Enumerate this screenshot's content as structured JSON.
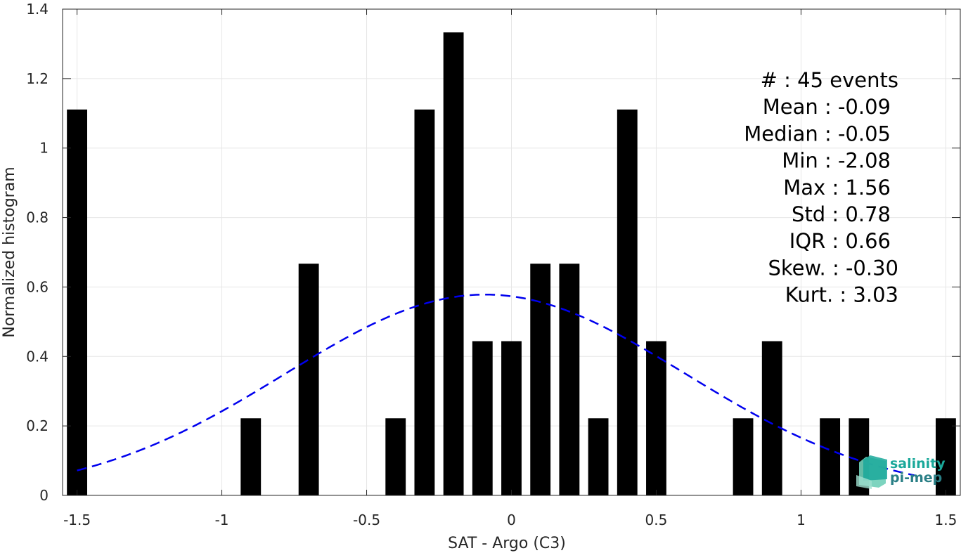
{
  "chart_data": {
    "type": "bar",
    "xlabel": "SAT - Argo (C3)",
    "ylabel": "Normalized histogram",
    "xlim": [
      -1.55,
      1.55
    ],
    "ylim": [
      0,
      1.4
    ],
    "xticks": [
      -1.5,
      -1,
      -0.5,
      0,
      0.5,
      1,
      1.5
    ],
    "xtick_labels": [
      "-1.5",
      "-1",
      "-0.5",
      "0",
      "0.5",
      "1",
      "1.5"
    ],
    "yticks": [
      0,
      0.2,
      0.4,
      0.6,
      0.8,
      1,
      1.2,
      1.4
    ],
    "ytick_labels": [
      "0",
      "0.2",
      "0.4",
      "0.6",
      "0.8",
      "1",
      "1.2",
      "1.4"
    ],
    "grid": true,
    "bar_width": 0.07,
    "bar_color": "#000000",
    "bars": [
      {
        "x": -1.5,
        "y": 1.111
      },
      {
        "x": -0.9,
        "y": 0.222
      },
      {
        "x": -0.7,
        "y": 0.667
      },
      {
        "x": -0.4,
        "y": 0.222
      },
      {
        "x": -0.3,
        "y": 1.111
      },
      {
        "x": -0.2,
        "y": 1.333
      },
      {
        "x": -0.1,
        "y": 0.444
      },
      {
        "x": 0.0,
        "y": 0.444
      },
      {
        "x": 0.1,
        "y": 0.667
      },
      {
        "x": 0.2,
        "y": 0.667
      },
      {
        "x": 0.3,
        "y": 0.222
      },
      {
        "x": 0.4,
        "y": 1.111
      },
      {
        "x": 0.5,
        "y": 0.444
      },
      {
        "x": 0.8,
        "y": 0.222
      },
      {
        "x": 0.9,
        "y": 0.444
      },
      {
        "x": 1.1,
        "y": 0.222
      },
      {
        "x": 1.2,
        "y": 0.222
      },
      {
        "x": 1.5,
        "y": 0.222
      }
    ],
    "fit_curve": {
      "type": "gaussian",
      "mean": -0.09,
      "std": 0.69,
      "x_range": [
        -1.5,
        1.4
      ],
      "color": "#0000ee",
      "style": "dashed"
    },
    "stats": [
      {
        "label": "#  : 45 events"
      },
      {
        "label": "Mean : -0.09"
      },
      {
        "label": "Median : -0.05"
      },
      {
        "label": "Min : -2.08"
      },
      {
        "label": "Max : 1.56"
      },
      {
        "label": "Std : 0.78"
      },
      {
        "label": "IQR : 0.66"
      },
      {
        "label": "Skew. : -0.30"
      },
      {
        "label": "Kurt. : 3.03"
      }
    ]
  },
  "logo": {
    "line1": "salinity",
    "line2": "pi-mep",
    "color_primary": "#1aa89a",
    "color_secondary": "#2a7f86"
  }
}
